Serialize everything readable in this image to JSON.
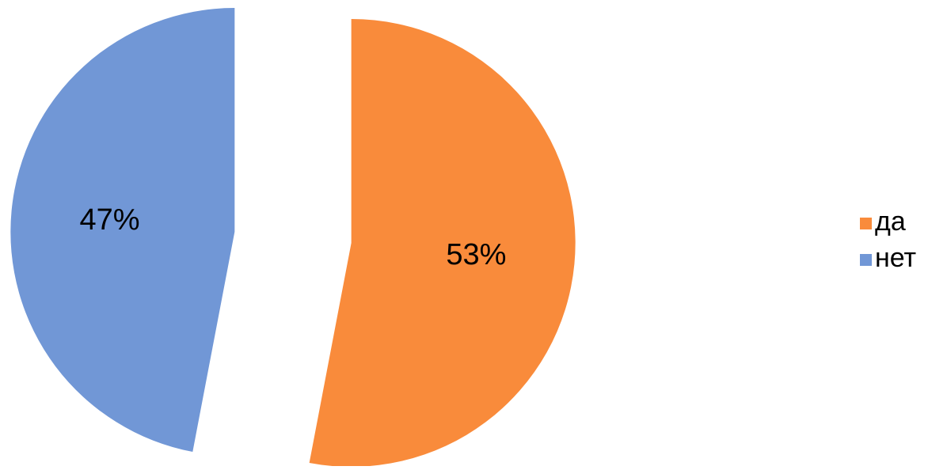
{
  "chart_data": {
    "type": "pie",
    "categories": [
      "да",
      "нет"
    ],
    "values": [
      53,
      47
    ],
    "data_labels": [
      "53%",
      "47%"
    ],
    "colors": [
      "#F98B3B",
      "#7197D6"
    ],
    "exploded": true,
    "start_angle_deg": 0,
    "direction": "clockwise",
    "legend_position": "right",
    "title": ""
  }
}
